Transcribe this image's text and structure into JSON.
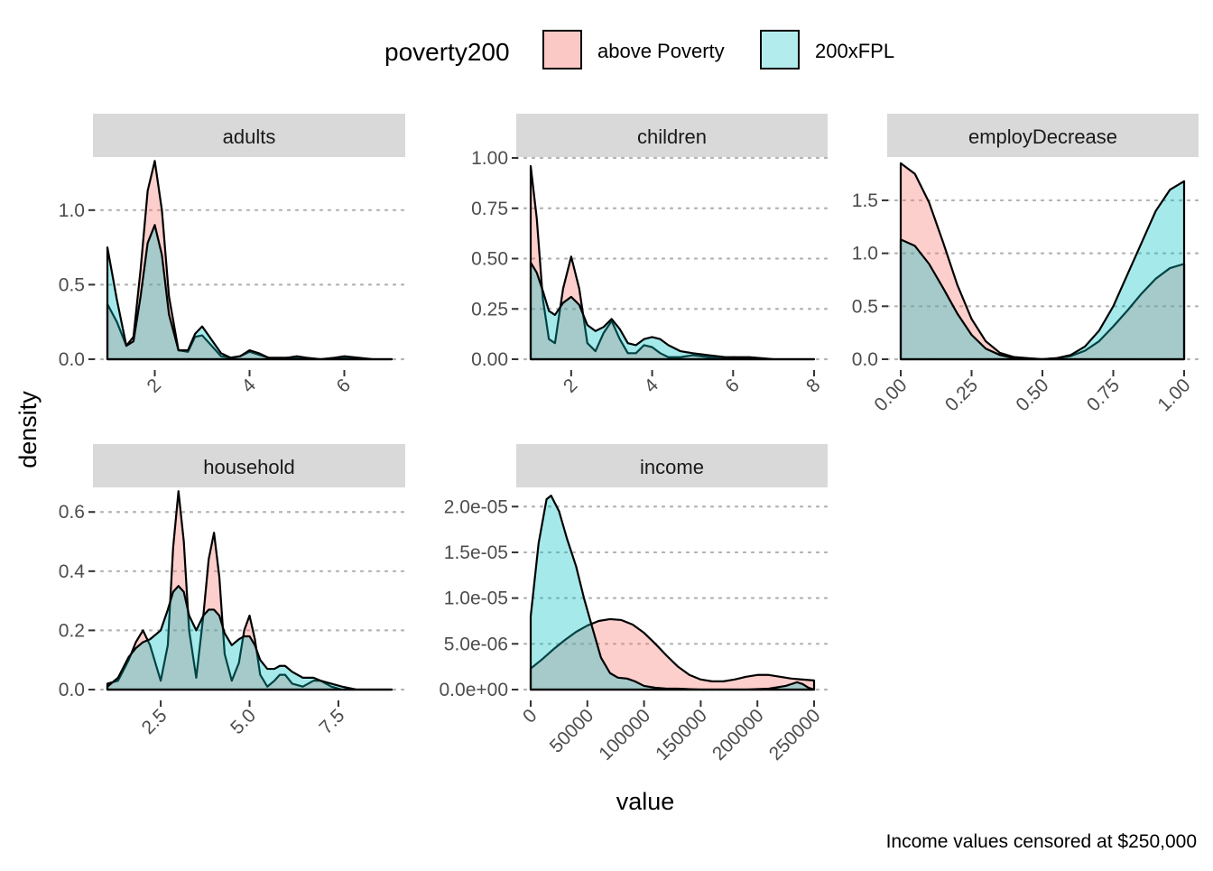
{
  "legend": {
    "title": "poverty200",
    "entries": [
      {
        "label": "above Poverty",
        "color": "#F8766D"
      },
      {
        "label": "200xFPL",
        "color": "#00BFC4"
      }
    ]
  },
  "axis_titles": {
    "x": "value",
    "y": "density"
  },
  "caption": "Income values censored at $250,000",
  "chart_data": {
    "type": "area",
    "subtype": "faceted-density",
    "fill_alpha": 0.35,
    "grid": "horizontal dotted major gridlines",
    "legend_placement": "top",
    "series_names": [
      "above Poverty",
      "200xFPL"
    ],
    "panels": [
      {
        "id": "adults",
        "title": "adults",
        "xlim": [
          1,
          7
        ],
        "ylim": [
          0,
          1.35
        ],
        "xticks": [
          2,
          4,
          6
        ],
        "xtick_labels": [
          "2",
          "4",
          "6"
        ],
        "yticks": [
          0,
          0.5,
          1.0
        ],
        "ytick_labels": [
          "0.0",
          "0.5",
          "1.0"
        ],
        "x_label_rotation": -45,
        "series": [
          {
            "name": "above Poverty",
            "x": [
              1.0,
              1.2,
              1.4,
              1.55,
              1.7,
              1.85,
              2.0,
              2.15,
              2.3,
              2.5,
              2.7,
              2.85,
              3.0,
              3.2,
              3.4,
              3.6,
              3.8,
              4.0,
              4.2,
              4.4,
              4.6,
              4.8,
              5.0,
              5.2,
              5.5,
              5.8,
              6.0,
              6.3,
              6.6,
              7.0
            ],
            "y": [
              0.37,
              0.25,
              0.09,
              0.15,
              0.6,
              1.13,
              1.33,
              1.0,
              0.42,
              0.06,
              0.05,
              0.15,
              0.16,
              0.09,
              0.02,
              0.01,
              0.02,
              0.05,
              0.03,
              0.01,
              0.0,
              0.01,
              0.01,
              0.0,
              0.0,
              0.0,
              0.01,
              0.0,
              0.0,
              0.0
            ]
          },
          {
            "name": "200xFPL",
            "x": [
              1.0,
              1.2,
              1.4,
              1.55,
              1.7,
              1.85,
              2.0,
              2.15,
              2.3,
              2.5,
              2.7,
              2.85,
              3.0,
              3.2,
              3.4,
              3.6,
              3.8,
              4.0,
              4.2,
              4.4,
              4.6,
              4.8,
              5.0,
              5.2,
              5.5,
              5.8,
              6.0,
              6.3,
              6.6,
              7.0
            ],
            "y": [
              0.75,
              0.4,
              0.09,
              0.12,
              0.42,
              0.78,
              0.9,
              0.7,
              0.3,
              0.06,
              0.06,
              0.17,
              0.22,
              0.13,
              0.04,
              0.01,
              0.02,
              0.06,
              0.04,
              0.01,
              0.01,
              0.01,
              0.02,
              0.01,
              0.0,
              0.01,
              0.02,
              0.01,
              0.0,
              0.0
            ]
          }
        ]
      },
      {
        "id": "children",
        "title": "children",
        "xlim": [
          1,
          8
        ],
        "ylim": [
          0,
          1.0
        ],
        "xticks": [
          2,
          4,
          6,
          8
        ],
        "xtick_labels": [
          "2",
          "4",
          "6",
          "8"
        ],
        "yticks": [
          0,
          0.25,
          0.5,
          0.75,
          1.0
        ],
        "ytick_labels": [
          "0.00",
          "0.25",
          "0.50",
          "0.75",
          "1.00"
        ],
        "x_label_rotation": -45,
        "series": [
          {
            "name": "above Poverty",
            "x": [
              1.0,
              1.15,
              1.3,
              1.45,
              1.6,
              1.8,
              2.0,
              2.2,
              2.4,
              2.6,
              2.8,
              3.0,
              3.2,
              3.4,
              3.6,
              3.8,
              4.0,
              4.2,
              4.4,
              4.7,
              5.0,
              5.4,
              5.8,
              6.0,
              6.4,
              7.0,
              7.5,
              8.0
            ],
            "y": [
              0.96,
              0.7,
              0.3,
              0.1,
              0.08,
              0.35,
              0.51,
              0.35,
              0.08,
              0.04,
              0.13,
              0.19,
              0.1,
              0.03,
              0.03,
              0.07,
              0.06,
              0.03,
              0.01,
              0.01,
              0.02,
              0.01,
              0.0,
              0.01,
              0.0,
              0.0,
              0.0,
              0.0
            ]
          },
          {
            "name": "200xFPL",
            "x": [
              1.0,
              1.15,
              1.3,
              1.45,
              1.6,
              1.8,
              2.0,
              2.2,
              2.4,
              2.6,
              2.8,
              3.0,
              3.2,
              3.4,
              3.6,
              3.8,
              4.0,
              4.2,
              4.4,
              4.7,
              5.0,
              5.4,
              5.8,
              6.0,
              6.4,
              7.0,
              7.5,
              8.0
            ],
            "y": [
              0.48,
              0.43,
              0.34,
              0.24,
              0.22,
              0.28,
              0.31,
              0.27,
              0.17,
              0.14,
              0.16,
              0.2,
              0.15,
              0.08,
              0.07,
              0.1,
              0.11,
              0.1,
              0.07,
              0.04,
              0.03,
              0.02,
              0.01,
              0.01,
              0.01,
              0.0,
              0.0,
              0.0
            ]
          }
        ]
      },
      {
        "id": "employDecrease",
        "title": "employDecrease",
        "xlim": [
          0,
          1
        ],
        "ylim": [
          0,
          1.9
        ],
        "xticks": [
          0,
          0.25,
          0.5,
          0.75,
          1.0
        ],
        "xtick_labels": [
          "0.00",
          "0.25",
          "0.50",
          "0.75",
          "1.00"
        ],
        "yticks": [
          0,
          0.5,
          1.0,
          1.5
        ],
        "ytick_labels": [
          "0.0",
          "0.5",
          "1.0",
          "1.5"
        ],
        "x_label_rotation": -45,
        "series": [
          {
            "name": "above Poverty",
            "x": [
              0.0,
              0.05,
              0.1,
              0.15,
              0.2,
              0.25,
              0.3,
              0.35,
              0.4,
              0.45,
              0.5,
              0.55,
              0.6,
              0.65,
              0.7,
              0.75,
              0.8,
              0.85,
              0.9,
              0.95,
              1.0
            ],
            "y": [
              1.85,
              1.75,
              1.48,
              1.1,
              0.7,
              0.38,
              0.17,
              0.06,
              0.02,
              0.01,
              0.0,
              0.01,
              0.03,
              0.08,
              0.17,
              0.31,
              0.46,
              0.62,
              0.76,
              0.86,
              0.9
            ]
          },
          {
            "name": "200xFPL",
            "x": [
              0.0,
              0.05,
              0.1,
              0.15,
              0.2,
              0.25,
              0.3,
              0.35,
              0.4,
              0.45,
              0.5,
              0.55,
              0.6,
              0.65,
              0.7,
              0.75,
              0.8,
              0.85,
              0.9,
              0.95,
              1.0
            ],
            "y": [
              1.13,
              1.07,
              0.9,
              0.67,
              0.43,
              0.23,
              0.1,
              0.04,
              0.01,
              0.0,
              0.0,
              0.01,
              0.04,
              0.12,
              0.27,
              0.5,
              0.8,
              1.1,
              1.4,
              1.6,
              1.68
            ]
          }
        ]
      },
      {
        "id": "household",
        "title": "household",
        "xlim": [
          1,
          9
        ],
        "ylim": [
          0,
          0.68
        ],
        "xticks": [
          2.5,
          5.0,
          7.5
        ],
        "xtick_labels": [
          "2.5",
          "5.0",
          "7.5"
        ],
        "yticks": [
          0,
          0.2,
          0.4,
          0.6
        ],
        "ytick_labels": [
          "0.0",
          "0.2",
          "0.4",
          "0.6"
        ],
        "x_label_rotation": -45,
        "series": [
          {
            "name": "above Poverty",
            "x": [
              1.0,
              1.3,
              1.6,
              1.8,
              2.0,
              2.2,
              2.5,
              2.7,
              2.85,
              3.0,
              3.15,
              3.3,
              3.5,
              3.7,
              3.85,
              4.0,
              4.15,
              4.3,
              4.5,
              4.7,
              4.85,
              5.0,
              5.15,
              5.3,
              5.5,
              5.7,
              5.85,
              6.0,
              6.2,
              6.5,
              6.8,
              7.0,
              7.3,
              7.6,
              8.0,
              9.0
            ],
            "y": [
              0.02,
              0.03,
              0.1,
              0.16,
              0.2,
              0.15,
              0.03,
              0.15,
              0.48,
              0.67,
              0.5,
              0.2,
              0.04,
              0.25,
              0.44,
              0.53,
              0.38,
              0.12,
              0.03,
              0.09,
              0.2,
              0.25,
              0.17,
              0.05,
              0.01,
              0.03,
              0.05,
              0.05,
              0.02,
              0.01,
              0.03,
              0.03,
              0.01,
              0.0,
              0.0,
              0.0
            ]
          },
          {
            "name": "200xFPL",
            "x": [
              1.0,
              1.3,
              1.6,
              1.8,
              2.0,
              2.2,
              2.5,
              2.7,
              2.85,
              3.0,
              3.15,
              3.3,
              3.5,
              3.7,
              3.85,
              4.0,
              4.15,
              4.3,
              4.5,
              4.7,
              4.85,
              5.0,
              5.15,
              5.3,
              5.5,
              5.7,
              5.85,
              6.0,
              6.2,
              6.5,
              6.8,
              7.0,
              7.3,
              7.6,
              8.0,
              9.0
            ],
            "y": [
              0.01,
              0.04,
              0.11,
              0.14,
              0.16,
              0.17,
              0.2,
              0.27,
              0.33,
              0.35,
              0.33,
              0.25,
              0.2,
              0.25,
              0.27,
              0.27,
              0.25,
              0.19,
              0.15,
              0.17,
              0.18,
              0.18,
              0.15,
              0.1,
              0.07,
              0.07,
              0.08,
              0.08,
              0.06,
              0.04,
              0.04,
              0.03,
              0.02,
              0.01,
              0.0,
              0.0
            ]
          }
        ]
      },
      {
        "id": "income",
        "title": "income",
        "xlim": [
          0,
          250000
        ],
        "ylim": [
          0,
          2.2e-05
        ],
        "xticks": [
          0,
          50000,
          100000,
          150000,
          200000,
          250000
        ],
        "xtick_labels": [
          "0",
          "50000",
          "100000",
          "150000",
          "200000",
          "250000"
        ],
        "yticks": [
          0,
          5e-06,
          1e-05,
          1.5e-05,
          2e-05
        ],
        "ytick_labels": [
          "0.0e+00",
          "5.0e-06",
          "1.0e-05",
          "1.5e-05",
          "2.0e-05"
        ],
        "x_label_rotation": -45,
        "series": [
          {
            "name": "above Poverty",
            "x": [
              0,
              10000,
              20000,
              30000,
              40000,
              50000,
              60000,
              70000,
              80000,
              90000,
              100000,
              110000,
              120000,
              130000,
              140000,
              150000,
              160000,
              170000,
              180000,
              190000,
              200000,
              210000,
              220000,
              230000,
              240000,
              250000
            ],
            "y": [
              2.3e-06,
              3.3e-06,
              4.4e-06,
              5.4e-06,
              6.3e-06,
              7e-06,
              7.5e-06,
              7.7e-06,
              7.6e-06,
              7.1e-06,
              6.2e-06,
              5e-06,
              3.7e-06,
              2.5e-06,
              1.6e-06,
              1.1e-06,
              9e-07,
              9e-07,
              1.1e-06,
              1.4e-06,
              1.6e-06,
              1.6e-06,
              1.4e-06,
              1.2e-06,
              1.1e-06,
              1e-06
            ]
          },
          {
            "name": "200xFPL",
            "x": [
              0,
              7000,
              14000,
              18000,
              25000,
              32000,
              40000,
              47000,
              55000,
              62000,
              70000,
              77000,
              85000,
              92000,
              100000,
              110000,
              120000,
              130000,
              150000,
              170000,
              190000,
              210000,
              225000,
              235000,
              240000,
              245000,
              250000
            ],
            "y": [
              8e-06,
              1.6e-05,
              2.08e-05,
              2.12e-05,
              1.95e-05,
              1.65e-05,
              1.35e-05,
              1e-05,
              6.5e-06,
              3.5e-06,
              1.8e-06,
              1.3e-06,
              1.2e-06,
              9e-07,
              4e-07,
              2e-07,
              1e-07,
              1e-07,
              0.0,
              0.0,
              0.0,
              1e-07,
              4e-07,
              8e-07,
              6e-07,
              2e-07,
              0.0
            ]
          }
        ]
      }
    ]
  }
}
